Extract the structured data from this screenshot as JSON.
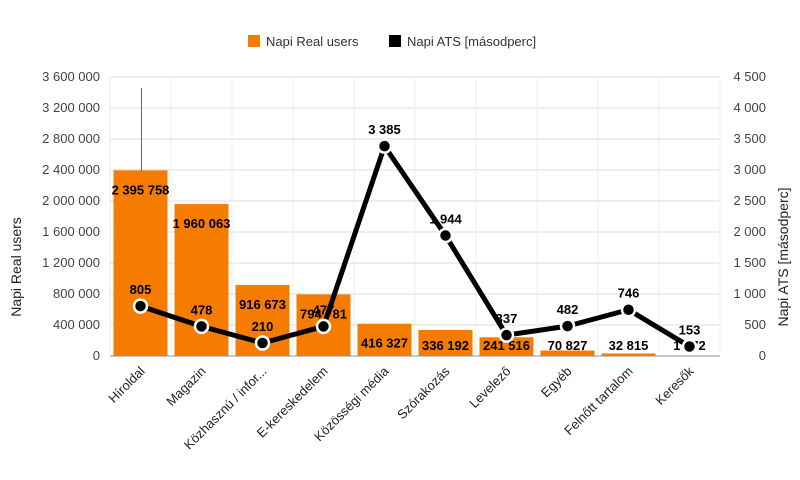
{
  "chart_data": {
    "type": "bar+line",
    "title": "",
    "categories": [
      "Híroldal",
      "Magazin",
      "Közhasznú / infor...",
      "E-kereskedelem",
      "Közösségi média",
      "Szórakozás",
      "Levelező",
      "Egyéb",
      "Felnőtt tartalom",
      "Keresők"
    ],
    "series": [
      {
        "name": "Napi Real users",
        "type": "bar",
        "axis": "left",
        "color": "#f57c00",
        "values": [
          2395758,
          1960063,
          916673,
          794781,
          416327,
          336192,
          241516,
          70827,
          32815,
          1772
        ],
        "labels": [
          "2 395 758",
          "1 960 063",
          "916 673",
          "794 781",
          "416 327",
          "336 192",
          "241 516",
          "70 827",
          "32 815",
          "1 772"
        ]
      },
      {
        "name": "Napi ATS [másodperc]",
        "type": "line",
        "axis": "right",
        "color": "#000000",
        "values": [
          805,
          478,
          210,
          477,
          3385,
          1944,
          337,
          482,
          746,
          153
        ],
        "labels": [
          "805",
          "478",
          "210",
          "477",
          "3 385",
          "1 944",
          "337",
          "482",
          "746",
          "153"
        ]
      }
    ],
    "y_left": {
      "label": "Napi Real users",
      "ylim": [
        0,
        3600000
      ],
      "ticks": [
        0,
        400000,
        800000,
        1200000,
        1600000,
        2000000,
        2400000,
        2800000,
        3200000,
        3600000
      ],
      "tick_labels": [
        "0",
        "400 000",
        "800 000",
        "1 200 000",
        "1 600 000",
        "2 000 000",
        "2 400 000",
        "2 800 000",
        "3 200 000",
        "3 600 000"
      ]
    },
    "y_right": {
      "label": "Napi ATS [másodperc]",
      "ylim": [
        0,
        4500
      ],
      "ticks": [
        0,
        500,
        1000,
        1500,
        2000,
        2500,
        3000,
        3500,
        4000,
        4500
      ],
      "tick_labels": [
        "0",
        "500",
        "1 000",
        "1 500",
        "2 000",
        "2 500",
        "3 000",
        "3 500",
        "4 000",
        "4 500"
      ]
    },
    "legend_position": "top",
    "grid": true
  }
}
